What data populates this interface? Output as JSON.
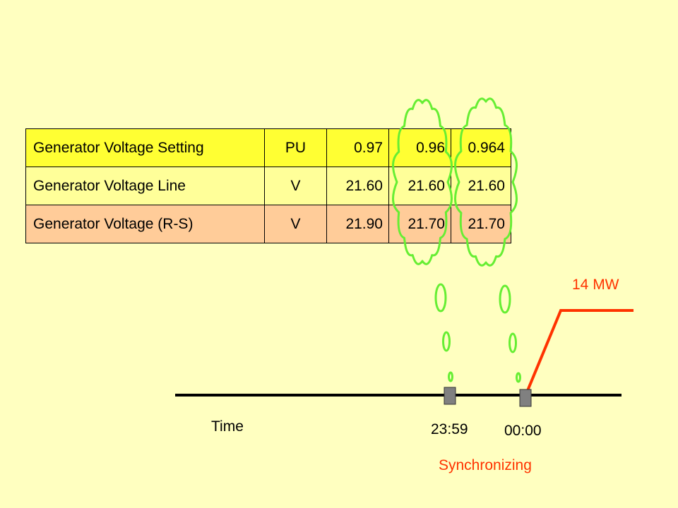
{
  "table": {
    "rows": [
      {
        "name": "Generator Voltage Setting",
        "unit": "PU",
        "v1": "0.97",
        "v2": "0.96",
        "v3": "0.964"
      },
      {
        "name": "Generator Voltage Line",
        "unit": "V",
        "v1": "21.60",
        "v2": "21.60",
        "v3": "21.60"
      },
      {
        "name": "Generator Voltage (R-S)",
        "unit": "V",
        "v1": "21.90",
        "v2": "21.70",
        "v3": "21.70"
      }
    ]
  },
  "timeline": {
    "axis_label": "Time",
    "marker_1": "23:59",
    "marker_2": "00:00",
    "event_label": "Synchronizing",
    "load_label": "14 MW"
  },
  "colors": {
    "background": "#FFFFC0",
    "row_setting": "#FFFF33",
    "row_line": "#FFFF99",
    "row_rs": "#FFCC99",
    "cloud_green": "#66EE33",
    "load_red": "#FF3300",
    "marker_gray": "#808080"
  }
}
